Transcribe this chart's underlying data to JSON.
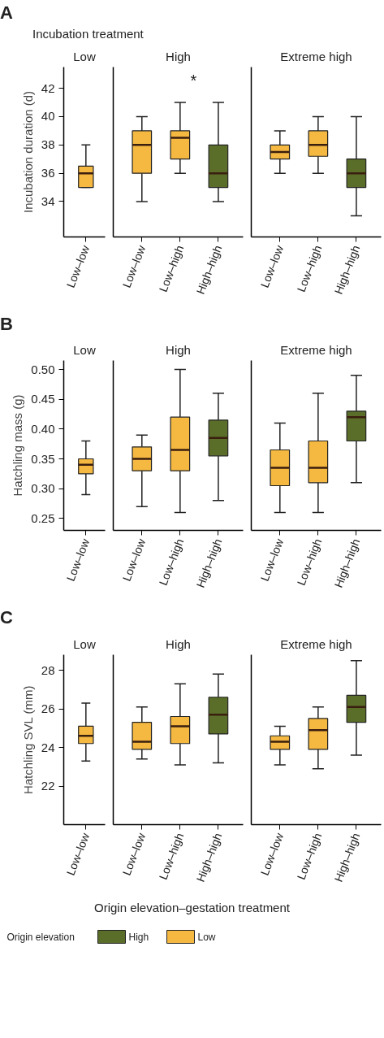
{
  "chart_data": [
    {
      "type": "box",
      "title": "Low",
      "ylabel": "Incubation duration (d)",
      "annotations": [
        "A",
        "Incubation treatment"
      ],
      "categories": [
        "Low–low"
      ],
      "ylim": [
        31.5,
        43.5
      ],
      "yticks": [
        34,
        36,
        38,
        40,
        42
      ],
      "grid": false,
      "legend": false,
      "series": [
        {
          "color": "#f5b942",
          "boxes": [
            {
              "low": 35,
              "q1": 35,
              "median": 36,
              "q3": 36.5,
              "high": 38
            }
          ]
        }
      ]
    },
    {
      "type": "box",
      "title": "High",
      "annotations": [
        "*"
      ],
      "categories": [
        "Low–low",
        "Low–high",
        "High–high"
      ],
      "ylim": [
        31.5,
        43.5
      ],
      "tick_labels": "x",
      "grid": false,
      "legend": false,
      "series": [
        {
          "color": "#f5b942",
          "boxes": [
            {
              "low": 34,
              "q1": 36,
              "median": 38,
              "q3": 39,
              "high": 40
            },
            {
              "low": 36,
              "q1": 37,
              "median": 38.5,
              "q3": 39,
              "high": 41
            },
            null
          ]
        },
        {
          "color": "#5a6e2a",
          "boxes": [
            null,
            null,
            {
              "low": 34,
              "q1": 35,
              "median": 36,
              "q3": 38,
              "high": 41
            }
          ]
        }
      ]
    },
    {
      "type": "box",
      "title": "Extreme high",
      "categories": [
        "Low–low",
        "Low–high",
        "High–high"
      ],
      "ylim": [
        31.5,
        43.5
      ],
      "tick_labels": "x",
      "grid": false,
      "legend": false,
      "series": [
        {
          "color": "#f5b942",
          "boxes": [
            {
              "low": 36,
              "q1": 37,
              "median": 37.5,
              "q3": 38,
              "high": 39
            },
            {
              "low": 36,
              "q1": 37.2,
              "median": 38,
              "q3": 39,
              "high": 40
            },
            null
          ]
        },
        {
          "color": "#5a6e2a",
          "boxes": [
            null,
            null,
            {
              "low": 33,
              "q1": 35,
              "median": 36,
              "q3": 37,
              "high": 40
            }
          ]
        }
      ]
    },
    {
      "type": "box",
      "title": "Low",
      "ylabel": "Hatchling mass (g)",
      "annotations": [
        "B"
      ],
      "categories": [
        "Low–low"
      ],
      "ylim": [
        0.23,
        0.515
      ],
      "yticks": [
        0.25,
        {
          "value": 0.3,
          "label": "0.30"
        },
        0.35,
        {
          "value": 0.4,
          "label": "0.40"
        },
        0.45,
        {
          "value": 0.5,
          "label": "0.50"
        }
      ],
      "grid": false,
      "legend": false,
      "series": [
        {
          "color": "#f5b942",
          "boxes": [
            {
              "low": 0.29,
              "q1": 0.325,
              "median": 0.34,
              "q3": 0.35,
              "high": 0.38
            }
          ]
        }
      ]
    },
    {
      "type": "box",
      "title": "High",
      "categories": [
        "Low–low",
        "Low–high",
        "High–high"
      ],
      "ylim": [
        0.23,
        0.515
      ],
      "tick_labels": "x",
      "grid": false,
      "legend": false,
      "series": [
        {
          "color": "#f5b942",
          "boxes": [
            {
              "low": 0.27,
              "q1": 0.33,
              "median": 0.35,
              "q3": 0.37,
              "high": 0.39
            },
            {
              "low": 0.26,
              "q1": 0.33,
              "median": 0.365,
              "q3": 0.42,
              "high": 0.5
            },
            null
          ]
        },
        {
          "color": "#5a6e2a",
          "boxes": [
            null,
            null,
            {
              "low": 0.28,
              "q1": 0.355,
              "median": 0.385,
              "q3": 0.415,
              "high": 0.46
            }
          ]
        }
      ]
    },
    {
      "type": "box",
      "title": "Extreme high",
      "categories": [
        "Low–low",
        "Low–high",
        "High–high"
      ],
      "ylim": [
        0.23,
        0.515
      ],
      "tick_labels": "x",
      "grid": false,
      "legend": false,
      "series": [
        {
          "color": "#f5b942",
          "boxes": [
            {
              "low": 0.26,
              "q1": 0.305,
              "median": 0.335,
              "q3": 0.365,
              "high": 0.41
            },
            {
              "low": 0.26,
              "q1": 0.31,
              "median": 0.335,
              "q3": 0.38,
              "high": 0.46
            },
            null
          ]
        },
        {
          "color": "#5a6e2a",
          "boxes": [
            null,
            null,
            {
              "low": 0.31,
              "q1": 0.38,
              "median": 0.42,
              "q3": 0.43,
              "high": 0.49
            }
          ]
        }
      ]
    },
    {
      "type": "box",
      "title": "Low",
      "ylabel": "Hatchling SVL (mm)",
      "annotations": [
        "C"
      ],
      "categories": [
        "Low–low"
      ],
      "ylim": [
        20,
        28.8
      ],
      "yticks": [
        22,
        24,
        26,
        28
      ],
      "grid": false,
      "legend": false,
      "series": [
        {
          "color": "#f5b942",
          "boxes": [
            {
              "low": 23.3,
              "q1": 24.2,
              "median": 24.6,
              "q3": 25.1,
              "high": 26.3
            }
          ]
        }
      ]
    },
    {
      "type": "box",
      "title": "High",
      "xlabel": "Origin elevation–gestation treatment",
      "categories": [
        "Low–low",
        "Low–high",
        "High–high"
      ],
      "ylim": [
        20,
        28.8
      ],
      "tick_labels": "x",
      "grid": false,
      "legend": false,
      "series": [
        {
          "color": "#f5b942",
          "boxes": [
            {
              "low": 23.4,
              "q1": 23.9,
              "median": 24.3,
              "q3": 25.3,
              "high": 26.1
            },
            {
              "low": 23.1,
              "q1": 24.2,
              "median": 25.1,
              "q3": 25.6,
              "high": 27.3
            },
            null
          ]
        },
        {
          "color": "#5a6e2a",
          "boxes": [
            null,
            null,
            {
              "low": 23.2,
              "q1": 24.7,
              "median": 25.7,
              "q3": 26.6,
              "high": 27.8
            }
          ]
        }
      ]
    },
    {
      "type": "box",
      "title": "Extreme high",
      "legend_title": "Origin elevation",
      "categories": [
        "Low–low",
        "Low–high",
        "High–high"
      ],
      "ylim": [
        20,
        28.8
      ],
      "tick_labels": "x",
      "grid": false,
      "legend": "bottom",
      "series": [
        {
          "name": "Low",
          "color": "#f5b942",
          "boxes": [
            {
              "low": 23.1,
              "q1": 23.9,
              "median": 24.3,
              "q3": 24.6,
              "high": 25.1
            },
            {
              "low": 22.9,
              "q1": 23.9,
              "median": 24.9,
              "q3": 25.5,
              "high": 26.1
            },
            null
          ]
        },
        {
          "name": "High",
          "color": "#5a6e2a",
          "boxes": [
            null,
            null,
            {
              "low": 23.6,
              "q1": 25.3,
              "median": 26.1,
              "q3": 26.7,
              "high": 28.5
            }
          ]
        }
      ]
    }
  ]
}
